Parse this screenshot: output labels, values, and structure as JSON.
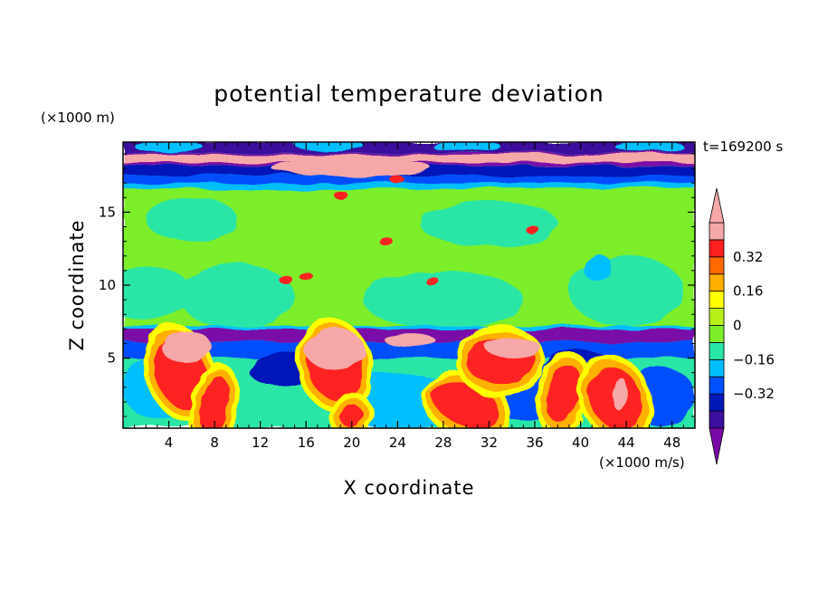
{
  "chart_data": {
    "type": "heatmap",
    "title": "potential temperature deviation",
    "xlabel": "X coordinate",
    "ylabel": "Z coordinate",
    "x_unit": "(×1000 m/s)",
    "y_unit": "(×1000 m)",
    "time_label": "t=169200 s",
    "xlim": [
      0,
      50
    ],
    "ylim": [
      0.2,
      19.8
    ],
    "x_ticks": [
      4,
      8,
      12,
      16,
      20,
      24,
      28,
      32,
      36,
      40,
      44,
      48
    ],
    "y_ticks": [
      5,
      10,
      15
    ],
    "colorbar": {
      "levels": [
        -0.48,
        -0.4,
        -0.32,
        -0.24,
        -0.16,
        -0.08,
        0,
        0.08,
        0.16,
        0.24,
        0.32,
        0.4,
        0.48
      ],
      "tick_labels": [
        "0.32",
        "0.16",
        "0",
        "−0.16",
        "−0.32"
      ],
      "tick_values": [
        0.32,
        0.16,
        0,
        -0.16,
        -0.32
      ],
      "colors": [
        "#7a0aa8",
        "#3c0f9e",
        "#0018b8",
        "#0050ff",
        "#00bfff",
        "#2ae6a6",
        "#7cee2a",
        "#b8f01a",
        "#ffff00",
        "#ffb000",
        "#ff6a00",
        "#ff2020",
        "#f6a8a8"
      ],
      "over_color": "#f6a8a8",
      "under_color": "#7a0aa8"
    },
    "regions": {
      "mid_troposphere": "green / light green (about 0)",
      "tropopause_bands": "purple and blue bands near Z≈6–7 and Z≈17–19",
      "lower_layer": "mixed warm (red/orange/pink) plumes and cool (blue/purple) pockets below Z≈6"
    }
  }
}
